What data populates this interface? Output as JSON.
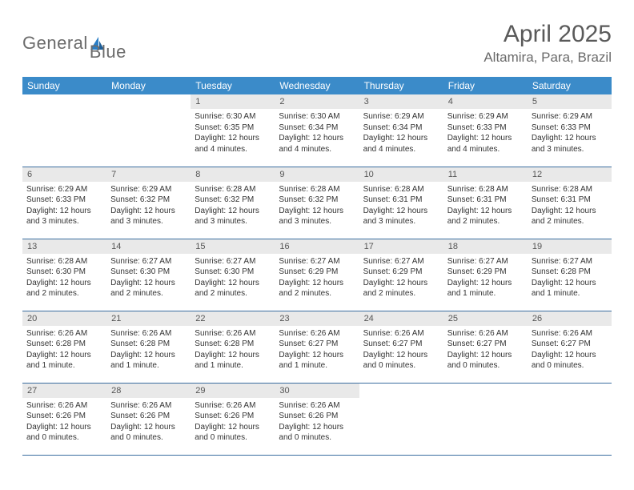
{
  "brand": {
    "word1": "General",
    "word2": "Blue"
  },
  "colors": {
    "header_bg": "#3b8bc9",
    "header_text": "#ffffff",
    "row_divider": "#3b6ea0",
    "daynum_bg": "#e9e9e9",
    "body_text": "#333333",
    "brand_grey": "#6b6b6b",
    "brand_blue": "#2a7ec6"
  },
  "title": "April 2025",
  "location": "Altamira, Para, Brazil",
  "weekdays": [
    "Sunday",
    "Monday",
    "Tuesday",
    "Wednesday",
    "Thursday",
    "Friday",
    "Saturday"
  ],
  "weeks": [
    [
      {
        "day": "",
        "lines": []
      },
      {
        "day": "",
        "lines": []
      },
      {
        "day": "1",
        "lines": [
          "Sunrise: 6:30 AM",
          "Sunset: 6:35 PM",
          "Daylight: 12 hours",
          "and 4 minutes."
        ]
      },
      {
        "day": "2",
        "lines": [
          "Sunrise: 6:30 AM",
          "Sunset: 6:34 PM",
          "Daylight: 12 hours",
          "and 4 minutes."
        ]
      },
      {
        "day": "3",
        "lines": [
          "Sunrise: 6:29 AM",
          "Sunset: 6:34 PM",
          "Daylight: 12 hours",
          "and 4 minutes."
        ]
      },
      {
        "day": "4",
        "lines": [
          "Sunrise: 6:29 AM",
          "Sunset: 6:33 PM",
          "Daylight: 12 hours",
          "and 4 minutes."
        ]
      },
      {
        "day": "5",
        "lines": [
          "Sunrise: 6:29 AM",
          "Sunset: 6:33 PM",
          "Daylight: 12 hours",
          "and 3 minutes."
        ]
      }
    ],
    [
      {
        "day": "6",
        "lines": [
          "Sunrise: 6:29 AM",
          "Sunset: 6:33 PM",
          "Daylight: 12 hours",
          "and 3 minutes."
        ]
      },
      {
        "day": "7",
        "lines": [
          "Sunrise: 6:29 AM",
          "Sunset: 6:32 PM",
          "Daylight: 12 hours",
          "and 3 minutes."
        ]
      },
      {
        "day": "8",
        "lines": [
          "Sunrise: 6:28 AM",
          "Sunset: 6:32 PM",
          "Daylight: 12 hours",
          "and 3 minutes."
        ]
      },
      {
        "day": "9",
        "lines": [
          "Sunrise: 6:28 AM",
          "Sunset: 6:32 PM",
          "Daylight: 12 hours",
          "and 3 minutes."
        ]
      },
      {
        "day": "10",
        "lines": [
          "Sunrise: 6:28 AM",
          "Sunset: 6:31 PM",
          "Daylight: 12 hours",
          "and 3 minutes."
        ]
      },
      {
        "day": "11",
        "lines": [
          "Sunrise: 6:28 AM",
          "Sunset: 6:31 PM",
          "Daylight: 12 hours",
          "and 2 minutes."
        ]
      },
      {
        "day": "12",
        "lines": [
          "Sunrise: 6:28 AM",
          "Sunset: 6:31 PM",
          "Daylight: 12 hours",
          "and 2 minutes."
        ]
      }
    ],
    [
      {
        "day": "13",
        "lines": [
          "Sunrise: 6:28 AM",
          "Sunset: 6:30 PM",
          "Daylight: 12 hours",
          "and 2 minutes."
        ]
      },
      {
        "day": "14",
        "lines": [
          "Sunrise: 6:27 AM",
          "Sunset: 6:30 PM",
          "Daylight: 12 hours",
          "and 2 minutes."
        ]
      },
      {
        "day": "15",
        "lines": [
          "Sunrise: 6:27 AM",
          "Sunset: 6:30 PM",
          "Daylight: 12 hours",
          "and 2 minutes."
        ]
      },
      {
        "day": "16",
        "lines": [
          "Sunrise: 6:27 AM",
          "Sunset: 6:29 PM",
          "Daylight: 12 hours",
          "and 2 minutes."
        ]
      },
      {
        "day": "17",
        "lines": [
          "Sunrise: 6:27 AM",
          "Sunset: 6:29 PM",
          "Daylight: 12 hours",
          "and 2 minutes."
        ]
      },
      {
        "day": "18",
        "lines": [
          "Sunrise: 6:27 AM",
          "Sunset: 6:29 PM",
          "Daylight: 12 hours",
          "and 1 minute."
        ]
      },
      {
        "day": "19",
        "lines": [
          "Sunrise: 6:27 AM",
          "Sunset: 6:28 PM",
          "Daylight: 12 hours",
          "and 1 minute."
        ]
      }
    ],
    [
      {
        "day": "20",
        "lines": [
          "Sunrise: 6:26 AM",
          "Sunset: 6:28 PM",
          "Daylight: 12 hours",
          "and 1 minute."
        ]
      },
      {
        "day": "21",
        "lines": [
          "Sunrise: 6:26 AM",
          "Sunset: 6:28 PM",
          "Daylight: 12 hours",
          "and 1 minute."
        ]
      },
      {
        "day": "22",
        "lines": [
          "Sunrise: 6:26 AM",
          "Sunset: 6:28 PM",
          "Daylight: 12 hours",
          "and 1 minute."
        ]
      },
      {
        "day": "23",
        "lines": [
          "Sunrise: 6:26 AM",
          "Sunset: 6:27 PM",
          "Daylight: 12 hours",
          "and 1 minute."
        ]
      },
      {
        "day": "24",
        "lines": [
          "Sunrise: 6:26 AM",
          "Sunset: 6:27 PM",
          "Daylight: 12 hours",
          "and 0 minutes."
        ]
      },
      {
        "day": "25",
        "lines": [
          "Sunrise: 6:26 AM",
          "Sunset: 6:27 PM",
          "Daylight: 12 hours",
          "and 0 minutes."
        ]
      },
      {
        "day": "26",
        "lines": [
          "Sunrise: 6:26 AM",
          "Sunset: 6:27 PM",
          "Daylight: 12 hours",
          "and 0 minutes."
        ]
      }
    ],
    [
      {
        "day": "27",
        "lines": [
          "Sunrise: 6:26 AM",
          "Sunset: 6:26 PM",
          "Daylight: 12 hours",
          "and 0 minutes."
        ]
      },
      {
        "day": "28",
        "lines": [
          "Sunrise: 6:26 AM",
          "Sunset: 6:26 PM",
          "Daylight: 12 hours",
          "and 0 minutes."
        ]
      },
      {
        "day": "29",
        "lines": [
          "Sunrise: 6:26 AM",
          "Sunset: 6:26 PM",
          "Daylight: 12 hours",
          "and 0 minutes."
        ]
      },
      {
        "day": "30",
        "lines": [
          "Sunrise: 6:26 AM",
          "Sunset: 6:26 PM",
          "Daylight: 12 hours",
          "and 0 minutes."
        ]
      },
      {
        "day": "",
        "lines": []
      },
      {
        "day": "",
        "lines": []
      },
      {
        "day": "",
        "lines": []
      }
    ]
  ]
}
